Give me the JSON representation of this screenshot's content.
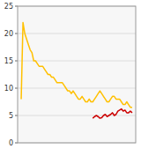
{
  "chart_data": {
    "type": "line",
    "series": [
      {
        "color": "#FFC000",
        "x": [
          1950,
          1951,
          1952,
          1953,
          1954,
          1955,
          1956,
          1957,
          1958,
          1959,
          1960,
          1961,
          1962,
          1963,
          1964,
          1965,
          1966,
          1967,
          1968,
          1969,
          1970,
          1971,
          1972,
          1973,
          1974,
          1975,
          1976,
          1977,
          1978,
          1979,
          1980,
          1981,
          1982,
          1983,
          1984,
          1985,
          1986,
          1987,
          1988,
          1989,
          1990,
          1991,
          1992,
          1993,
          1994,
          1995,
          1996,
          1997,
          1998,
          1999,
          2000,
          2001,
          2002,
          2003,
          2004,
          2005,
          2006,
          2007,
          2008,
          2009,
          2010,
          2011,
          2012
        ],
        "values": [
          8,
          22,
          20,
          19,
          18,
          17,
          16.5,
          15,
          15,
          14.5,
          14,
          14,
          14,
          13.5,
          13,
          12.5,
          12.5,
          12,
          12,
          11.5,
          11,
          11,
          11,
          11,
          10.5,
          10,
          9.5,
          9.5,
          9,
          9.5,
          9,
          8.5,
          8,
          8,
          8.5,
          8,
          7.5,
          7.5,
          8,
          7.5,
          7.5,
          8,
          8.5,
          9,
          9.5,
          9,
          8.5,
          8,
          7.5,
          7.5,
          8,
          8.5,
          8.5,
          8,
          8,
          8,
          7.5,
          7,
          7,
          7.5,
          7,
          6.5,
          6.5
        ]
      },
      {
        "color": "#CC0000",
        "x": [
          1990,
          1991,
          1992,
          1993,
          1994,
          1995,
          1996,
          1997,
          1998,
          1999,
          2000,
          2001,
          2002,
          2003,
          2004,
          2005,
          2006,
          2007,
          2008,
          2009,
          2010,
          2011,
          2012
        ],
        "values": [
          4.5,
          4.8,
          5.0,
          4.8,
          4.5,
          4.6,
          5.0,
          5.2,
          4.8,
          5.0,
          5.2,
          5.5,
          5.0,
          5.2,
          5.8,
          6.0,
          6.2,
          5.8,
          6.0,
          5.5,
          5.5,
          5.8,
          5.5
        ]
      }
    ],
    "xlim": [
      1948,
      2014
    ],
    "ylim": [
      0,
      25
    ],
    "yticks": [
      0,
      5,
      10,
      15,
      20,
      25
    ],
    "grid": true,
    "tick_labels": "y"
  }
}
